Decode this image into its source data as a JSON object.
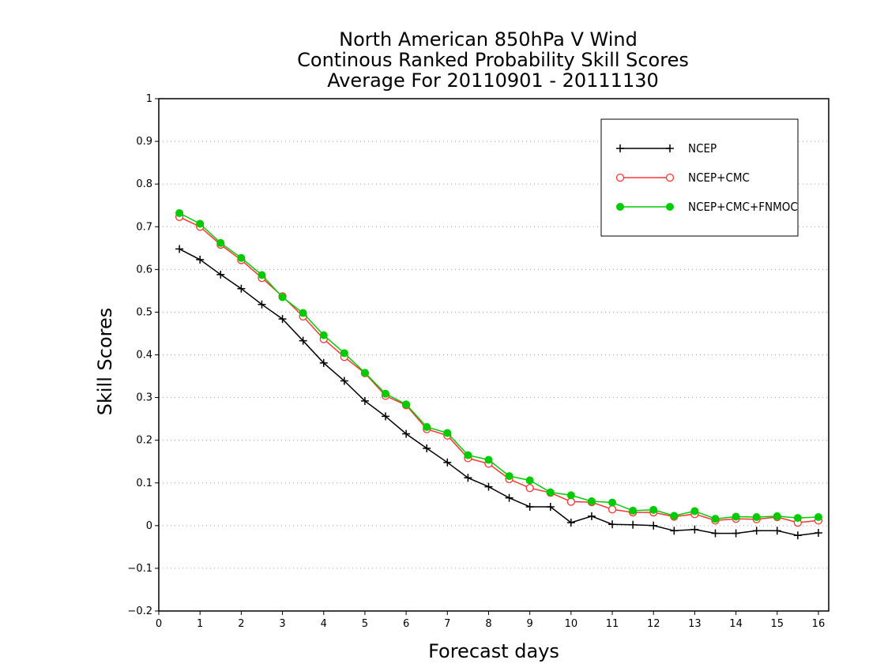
{
  "chart_data": {
    "type": "line",
    "title_lines": [
      "North American 850hPa V Wind",
      "Continous Ranked Probability Skill Scores",
      "Average For 20110901 - 20111130"
    ],
    "xlabel": "Forecast days",
    "ylabel": "Skill Scores",
    "xlim": [
      0,
      16.25
    ],
    "ylim": [
      -0.2,
      1
    ],
    "xticks": [
      0,
      1,
      2,
      3,
      4,
      5,
      6,
      7,
      8,
      9,
      10,
      11,
      12,
      13,
      14,
      15,
      16
    ],
    "xtick_labels": [
      "0",
      "1",
      "2",
      "3",
      "4",
      "5",
      "6",
      "7",
      "8",
      "9",
      "10",
      "11",
      "12",
      "13",
      "14",
      "15",
      "16"
    ],
    "yticks": [
      -0.2,
      -0.1,
      0,
      0.1,
      0.2,
      0.3,
      0.4,
      0.5,
      0.6,
      0.7,
      0.8,
      0.9,
      1
    ],
    "ytick_labels": [
      "−0.2",
      "−0.1",
      "0",
      "0.1",
      "0.2",
      "0.3",
      "0.4",
      "0.5",
      "0.6",
      "0.7",
      "0.8",
      "0.9",
      "1"
    ],
    "grid": "horizontal-dotted",
    "legend_position": "top-right",
    "x": [
      0.5,
      1.0,
      1.5,
      2.0,
      2.5,
      3.0,
      3.5,
      4.0,
      4.5,
      5.0,
      5.5,
      6.0,
      6.5,
      7.0,
      7.5,
      8.0,
      8.5,
      9.0,
      9.5,
      10.0,
      10.5,
      11.0,
      11.5,
      12.0,
      12.5,
      13.0,
      13.5,
      14.0,
      14.5,
      15.0,
      15.5,
      16.0
    ],
    "series": [
      {
        "name": "NCEP",
        "color": "#000000",
        "marker": "plus",
        "values": [
          0.648,
          0.623,
          0.588,
          0.555,
          0.518,
          0.484,
          0.433,
          0.381,
          0.339,
          0.292,
          0.256,
          0.215,
          0.181,
          0.148,
          0.112,
          0.091,
          0.065,
          0.044,
          0.044,
          0.007,
          0.022,
          0.003,
          0.002,
          0.0,
          -0.012,
          -0.009,
          -0.018,
          -0.018,
          -0.012,
          -0.012,
          -0.023,
          -0.017
        ]
      },
      {
        "name": "NCEP+CMC",
        "color": "#ff3333",
        "marker": "open-circle",
        "values": [
          0.723,
          0.7,
          0.658,
          0.622,
          0.58,
          0.537,
          0.49,
          0.437,
          0.395,
          0.357,
          0.304,
          0.282,
          0.226,
          0.211,
          0.158,
          0.145,
          0.109,
          0.088,
          0.077,
          0.056,
          0.055,
          0.038,
          0.031,
          0.031,
          0.021,
          0.027,
          0.012,
          0.016,
          0.015,
          0.02,
          0.007,
          0.012
        ]
      },
      {
        "name": "NCEP+CMC+FNMOC",
        "color": "#00cc00",
        "marker": "filled-circle",
        "values": [
          0.732,
          0.707,
          0.662,
          0.627,
          0.587,
          0.535,
          0.498,
          0.446,
          0.404,
          0.358,
          0.309,
          0.284,
          0.231,
          0.217,
          0.165,
          0.154,
          0.116,
          0.106,
          0.078,
          0.071,
          0.057,
          0.054,
          0.035,
          0.037,
          0.023,
          0.034,
          0.016,
          0.021,
          0.02,
          0.022,
          0.018,
          0.02
        ]
      }
    ]
  }
}
